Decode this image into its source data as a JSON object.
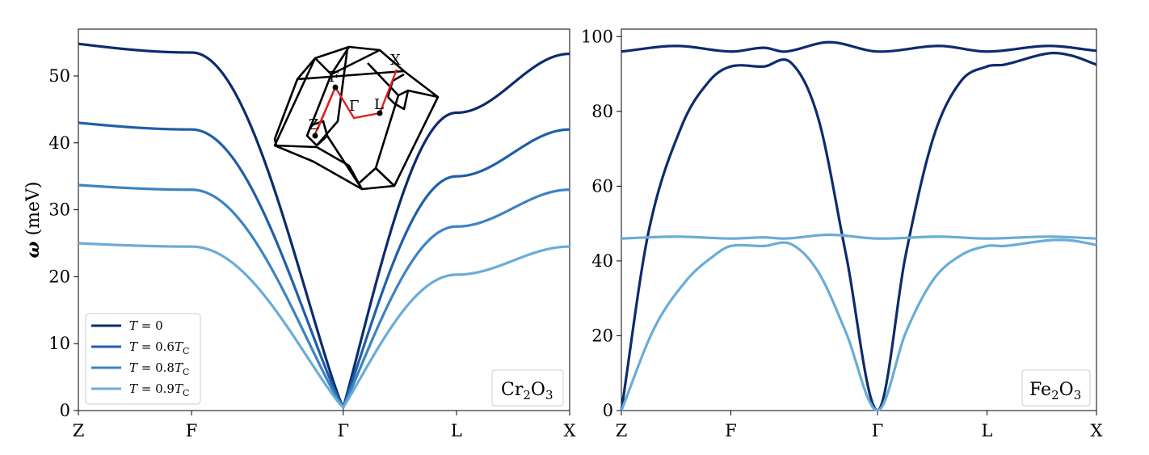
{
  "chart_data": [
    {
      "type": "line",
      "panel": "left",
      "ylabel_var": "ω",
      "ylabel_unit": " (meV)",
      "xticks": [
        "Z",
        "F",
        "Γ",
        "L",
        "X"
      ],
      "xtick_pos": [
        0,
        1,
        2.34,
        3.34,
        4.34
      ],
      "ylim": [
        0,
        57
      ],
      "yticks": [
        0,
        10,
        20,
        30,
        40,
        50
      ],
      "material": {
        "a": "Cr",
        "sub1": "2",
        "b": "O",
        "sub2": "3"
      },
      "legend_position": "lower-left",
      "series": [
        {
          "name_var": "T",
          "name_rest": " = 0",
          "color": "#0c2c6e",
          "top": 54.8,
          "flat": 53.5,
          "l": 44.5,
          "x": 53.3,
          "gamma": 0.5
        },
        {
          "name_var": "T",
          "name_rest": " = 0.6",
          "name_var2": "T",
          "name_sub": "C",
          "color": "#1f5fa9",
          "top": 43.0,
          "flat": 42.0,
          "l": 35.0,
          "x": 42.0,
          "gamma": 0.5
        },
        {
          "name_var": "T",
          "name_rest": " = 0.8",
          "name_var2": "T",
          "name_sub": "C",
          "color": "#3d83c2",
          "top": 33.7,
          "flat": 33.0,
          "l": 27.5,
          "x": 33.0,
          "gamma": 0.5
        },
        {
          "name_var": "T",
          "name_rest": " = 0.9",
          "name_var2": "T",
          "name_sub": "C",
          "color": "#6aacd8",
          "top": 25.0,
          "flat": 24.5,
          "l": 20.3,
          "x": 24.5,
          "gamma": 0.5
        }
      ],
      "inset": {
        "labels": [
          "X",
          "F",
          "Γ",
          "L",
          "Z"
        ],
        "path_color": "#e02020"
      }
    },
    {
      "type": "line",
      "panel": "right",
      "xticks": [
        "Z",
        "F",
        "Γ",
        "L",
        "X"
      ],
      "xtick_pos": [
        0,
        1,
        2.34,
        3.34,
        4.34
      ],
      "ylim": [
        0,
        102
      ],
      "yticks": [
        0,
        20,
        40,
        60,
        80,
        100
      ],
      "material": {
        "a": "Fe",
        "sub1": "2",
        "b": "O",
        "sub2": "3"
      },
      "series": [
        {
          "color": "#0c2c6e",
          "flat_x": [
            0,
            0.5,
            1.0,
            1.3,
            1.5,
            1.9,
            2.34,
            2.9,
            3.34,
            3.9,
            4.34
          ],
          "flat_y": [
            96,
            97.5,
            96,
            97,
            96,
            98.5,
            96,
            97.5,
            96,
            97.5,
            96.2
          ],
          "disp_x": [
            0,
            0.25,
            0.55,
            0.8,
            1.0,
            1.3,
            1.55,
            1.8,
            2.05,
            2.34,
            2.6,
            2.85,
            3.1,
            3.34,
            3.5,
            3.9,
            4.1,
            4.34
          ],
          "disp_y": [
            0,
            48,
            76,
            88,
            92,
            92,
            93,
            78,
            42,
            0,
            42,
            73,
            88,
            92,
            92.5,
            95.5,
            95,
            92.5
          ]
        },
        {
          "color": "#6aacd8",
          "flat_x": [
            0,
            0.5,
            1.0,
            1.3,
            1.5,
            1.9,
            2.34,
            2.9,
            3.34,
            3.9,
            4.34
          ],
          "flat_y": [
            46,
            46.5,
            46,
            46.3,
            46,
            47,
            46,
            46.5,
            46,
            46.5,
            46
          ],
          "disp_x": [
            0,
            0.3,
            0.6,
            0.85,
            1.0,
            1.3,
            1.55,
            1.8,
            2.05,
            2.34,
            2.6,
            2.85,
            3.1,
            3.34,
            3.5,
            3.9,
            4.1,
            4.34
          ],
          "disp_y": [
            0,
            22,
            35,
            41.5,
            44,
            44,
            44.5,
            37,
            21,
            0,
            21,
            35,
            41.5,
            44,
            44,
            45.5,
            45.5,
            44.3
          ]
        }
      ]
    }
  ]
}
